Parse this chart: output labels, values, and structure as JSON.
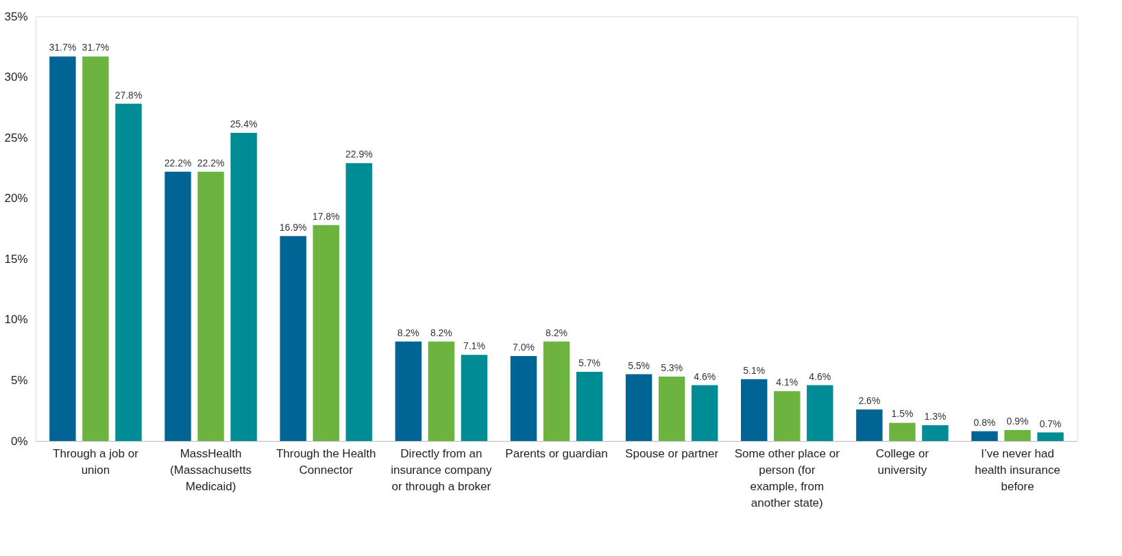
{
  "chart_data": {
    "type": "bar",
    "categories": [
      "Through a job or union",
      "MassHealth (Massachusetts Medicaid)",
      "Through the Health Connector",
      "Directly from an insurance company or through a broker",
      "Parents or guardian",
      "Spouse or partner",
      "Some other place or person (for example, from another state)",
      "College or university",
      "I’ve never had health insurance before"
    ],
    "series": [
      {
        "color": "#006494",
        "values": [
          31.7,
          22.2,
          16.9,
          8.2,
          7.0,
          5.5,
          5.1,
          2.6,
          0.8
        ],
        "value_labels": [
          "31.7%",
          "22.2%",
          "16.9%",
          "8.2%",
          "7.0%",
          "5.5%",
          "5.1%",
          "2.6%",
          "0.8%"
        ]
      },
      {
        "color": "#6db33f",
        "values": [
          31.7,
          22.2,
          17.8,
          8.2,
          8.2,
          5.3,
          4.1,
          1.5,
          0.9
        ],
        "value_labels": [
          "31.7%",
          "22.2%",
          "17.8%",
          "8.2%",
          "8.2%",
          "5.3%",
          "4.1%",
          "1.5%",
          "0.9%"
        ]
      },
      {
        "color": "#008c95",
        "values": [
          27.8,
          25.4,
          22.9,
          7.1,
          5.7,
          4.6,
          4.6,
          1.3,
          0.7
        ],
        "value_labels": [
          "27.8%",
          "25.4%",
          "22.9%",
          "7.1%",
          "5.7%",
          "4.6%",
          "4.6%",
          "1.3%",
          "0.7%"
        ]
      }
    ],
    "ylim": [
      0,
      35
    ],
    "yticks": [
      {
        "value": 0,
        "label": "0%"
      },
      {
        "value": 5,
        "label": "5%"
      },
      {
        "value": 10,
        "label": "10%"
      },
      {
        "value": 15,
        "label": "15%"
      },
      {
        "value": 20,
        "label": "20%"
      },
      {
        "value": 25,
        "label": "25%"
      },
      {
        "value": 30,
        "label": "30%"
      },
      {
        "value": 35,
        "label": "35%"
      }
    ],
    "grid": false
  }
}
